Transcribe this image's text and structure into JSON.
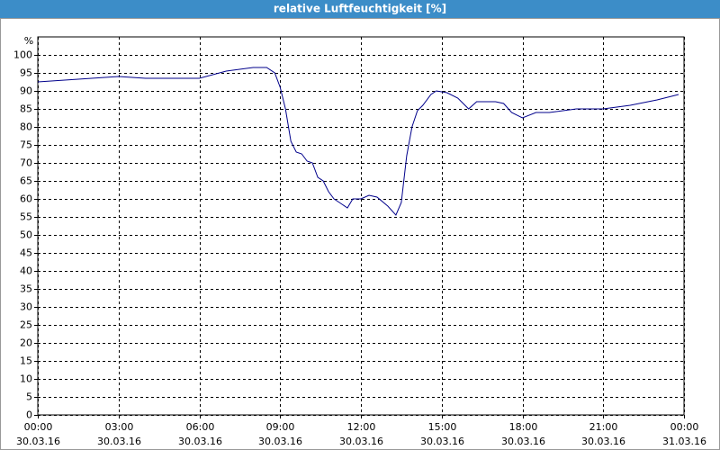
{
  "chart_data": {
    "type": "line",
    "title": "relative Luftfeuchtigkeit [%]",
    "y_label": "%",
    "x": [
      0,
      1,
      2,
      3,
      4,
      5,
      6,
      7,
      8,
      8.5,
      8.8,
      9.0,
      9.2,
      9.4,
      9.6,
      9.8,
      10.0,
      10.2,
      10.4,
      10.6,
      10.8,
      11.0,
      11.2,
      11.5,
      11.7,
      12.0,
      12.3,
      12.6,
      13.0,
      13.3,
      13.5,
      13.7,
      13.9,
      14.1,
      14.3,
      14.6,
      14.8,
      15.2,
      15.6,
      16.0,
      16.3,
      16.7,
      17.0,
      17.3,
      17.6,
      18.0,
      18.5,
      19.0,
      20.0,
      21.0,
      22.0,
      23.0,
      23.8
    ],
    "series": [
      {
        "name": "relative Luftfeuchtigkeit",
        "color": "#00008b",
        "values": [
          92.5,
          93,
          93.5,
          94,
          93.5,
          93.5,
          93.5,
          95.5,
          96.5,
          96.5,
          95,
          91,
          85,
          76,
          73,
          72.5,
          70.5,
          70,
          66,
          65,
          62,
          60,
          59,
          57.5,
          60,
          60,
          61,
          60.5,
          58,
          55.5,
          59,
          72,
          80,
          84.5,
          86,
          89,
          90,
          89.5,
          88,
          85,
          87,
          87,
          87,
          86.5,
          84,
          82.5,
          84,
          84,
          85,
          85,
          86,
          87.5,
          89
        ]
      }
    ],
    "xlim": [
      0,
      24
    ],
    "ylim": [
      0,
      105
    ],
    "xticks": [
      {
        "value": 0,
        "label": "00:00"
      },
      {
        "value": 3,
        "label": "03:00"
      },
      {
        "value": 6,
        "label": "06:00"
      },
      {
        "value": 9,
        "label": "09:00"
      },
      {
        "value": 12,
        "label": "12:00"
      },
      {
        "value": 15,
        "label": "15:00"
      },
      {
        "value": 18,
        "label": "18:00"
      },
      {
        "value": 21,
        "label": "21:00"
      },
      {
        "value": 24,
        "label": "00:00"
      }
    ],
    "xtick_dates": [
      "30.03.16",
      "30.03.16",
      "30.03.16",
      "30.03.16",
      "30.03.16",
      "30.03.16",
      "30.03.16",
      "30.03.16",
      "31.03.16"
    ],
    "yticks": [
      0,
      5,
      10,
      15,
      20,
      25,
      30,
      35,
      40,
      45,
      50,
      55,
      60,
      65,
      70,
      75,
      80,
      85,
      90,
      95,
      100
    ],
    "grid": true
  }
}
